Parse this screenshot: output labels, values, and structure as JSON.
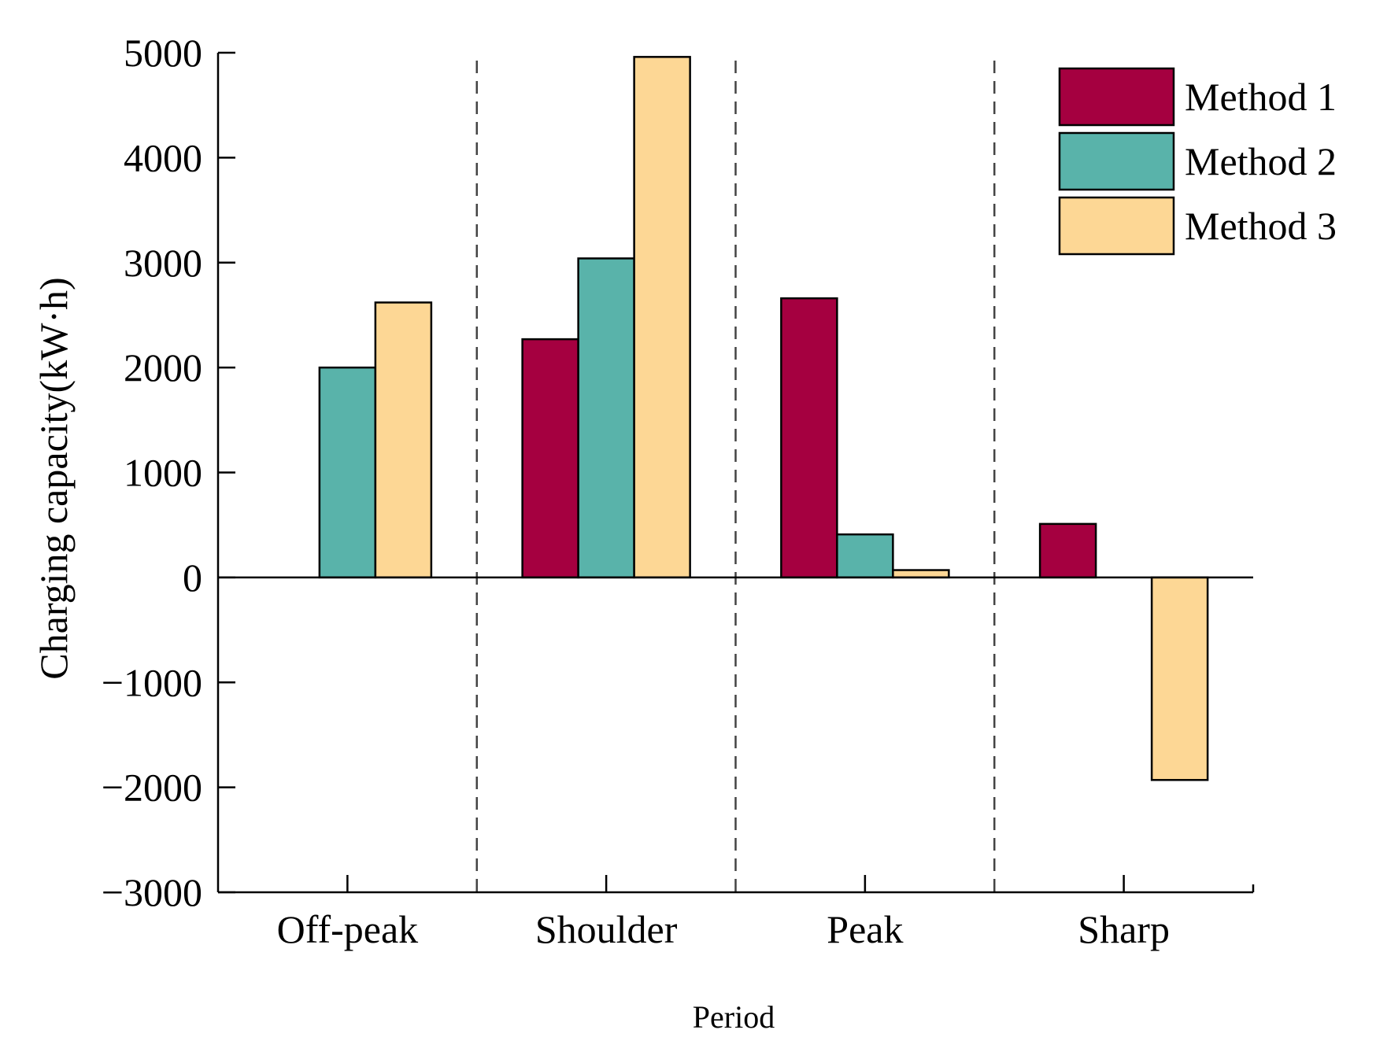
{
  "chart_data": {
    "type": "bar",
    "title": "",
    "xlabel": "Period",
    "ylabel": "Charging capacity(kW·h)",
    "ylim": [
      -3000,
      5000
    ],
    "yticks": [
      -3000,
      -2000,
      -1000,
      0,
      1000,
      2000,
      3000,
      4000,
      5000
    ],
    "ytick_labels": [
      "−3000",
      "−2000",
      "−1000",
      "0",
      "1000",
      "2000",
      "3000",
      "4000",
      "5000"
    ],
    "categories": [
      "Off-peak",
      "Shoulder",
      "Peak",
      "Sharp"
    ],
    "series": [
      {
        "name": "Method 1",
        "color": "#A50040",
        "values": [
          0,
          2270,
          2660,
          510
        ]
      },
      {
        "name": "Method 2",
        "color": "#59B3AA",
        "values": [
          2000,
          3040,
          410,
          0
        ]
      },
      {
        "name": "Method 3",
        "color": "#FDD795",
        "values": [
          2620,
          4960,
          70,
          -1930
        ]
      }
    ],
    "legend_position": "top-right",
    "group_separators": "dashed",
    "grid": false
  }
}
